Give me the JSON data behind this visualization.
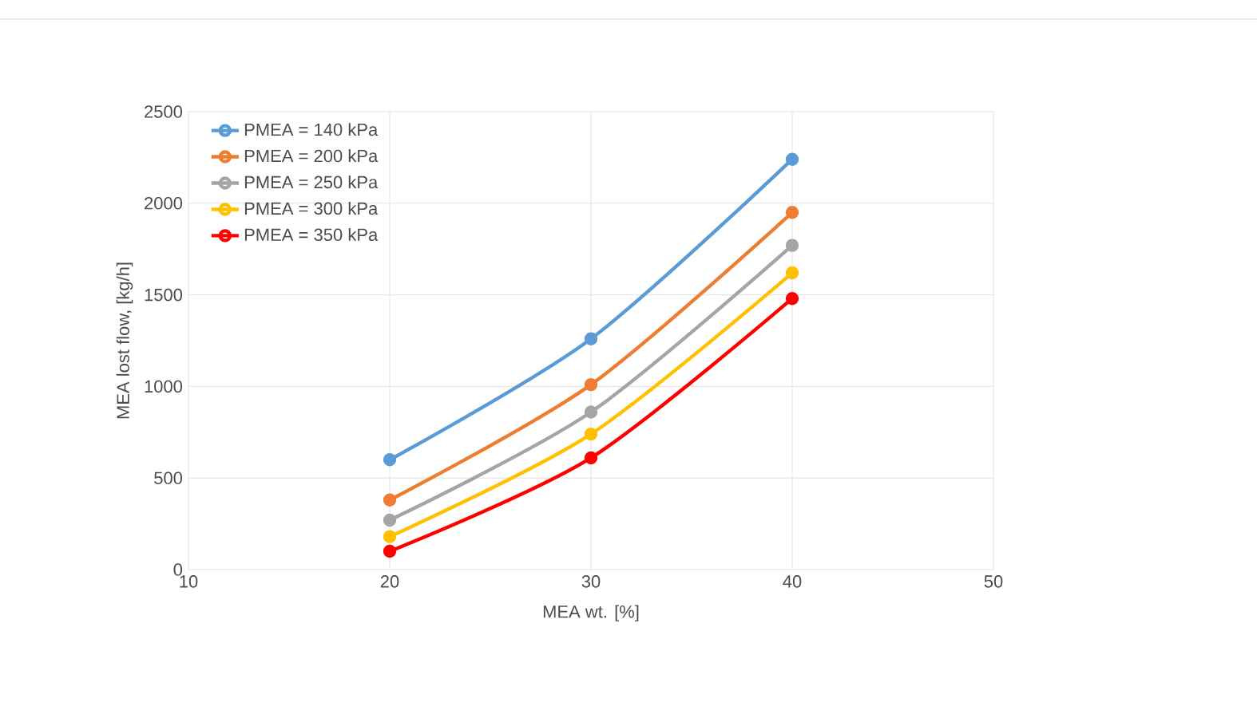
{
  "chart_data": {
    "type": "line",
    "xlabel": "MEA wt. [%]",
    "ylabel": "MEA lost flow, [kg/h]",
    "x": [
      20,
      30,
      40
    ],
    "series": [
      {
        "name": "PMEA = 140 kPa",
        "color": "#5b9bd5",
        "values": [
          600,
          1260,
          2240
        ]
      },
      {
        "name": "PMEA = 200 kPa",
        "color": "#ed7d31",
        "values": [
          380,
          1010,
          1950
        ]
      },
      {
        "name": "PMEA = 250 kPa",
        "color": "#a5a5a5",
        "values": [
          270,
          860,
          1770
        ]
      },
      {
        "name": "PMEA = 300 kPa",
        "color": "#ffc000",
        "values": [
          180,
          740,
          1620
        ]
      },
      {
        "name": "PMEA = 350 kPa",
        "color": "#ff0000",
        "values": [
          100,
          610,
          1480
        ]
      }
    ],
    "xlim": [
      10,
      50
    ],
    "xticks": [
      10,
      20,
      30,
      40,
      50
    ],
    "ylim": [
      0,
      2500
    ],
    "yticks": [
      0,
      500,
      1000,
      1500,
      2000,
      2500
    ],
    "grid": true,
    "legend": "top left",
    "marker": "circle",
    "line_style": "solid"
  }
}
